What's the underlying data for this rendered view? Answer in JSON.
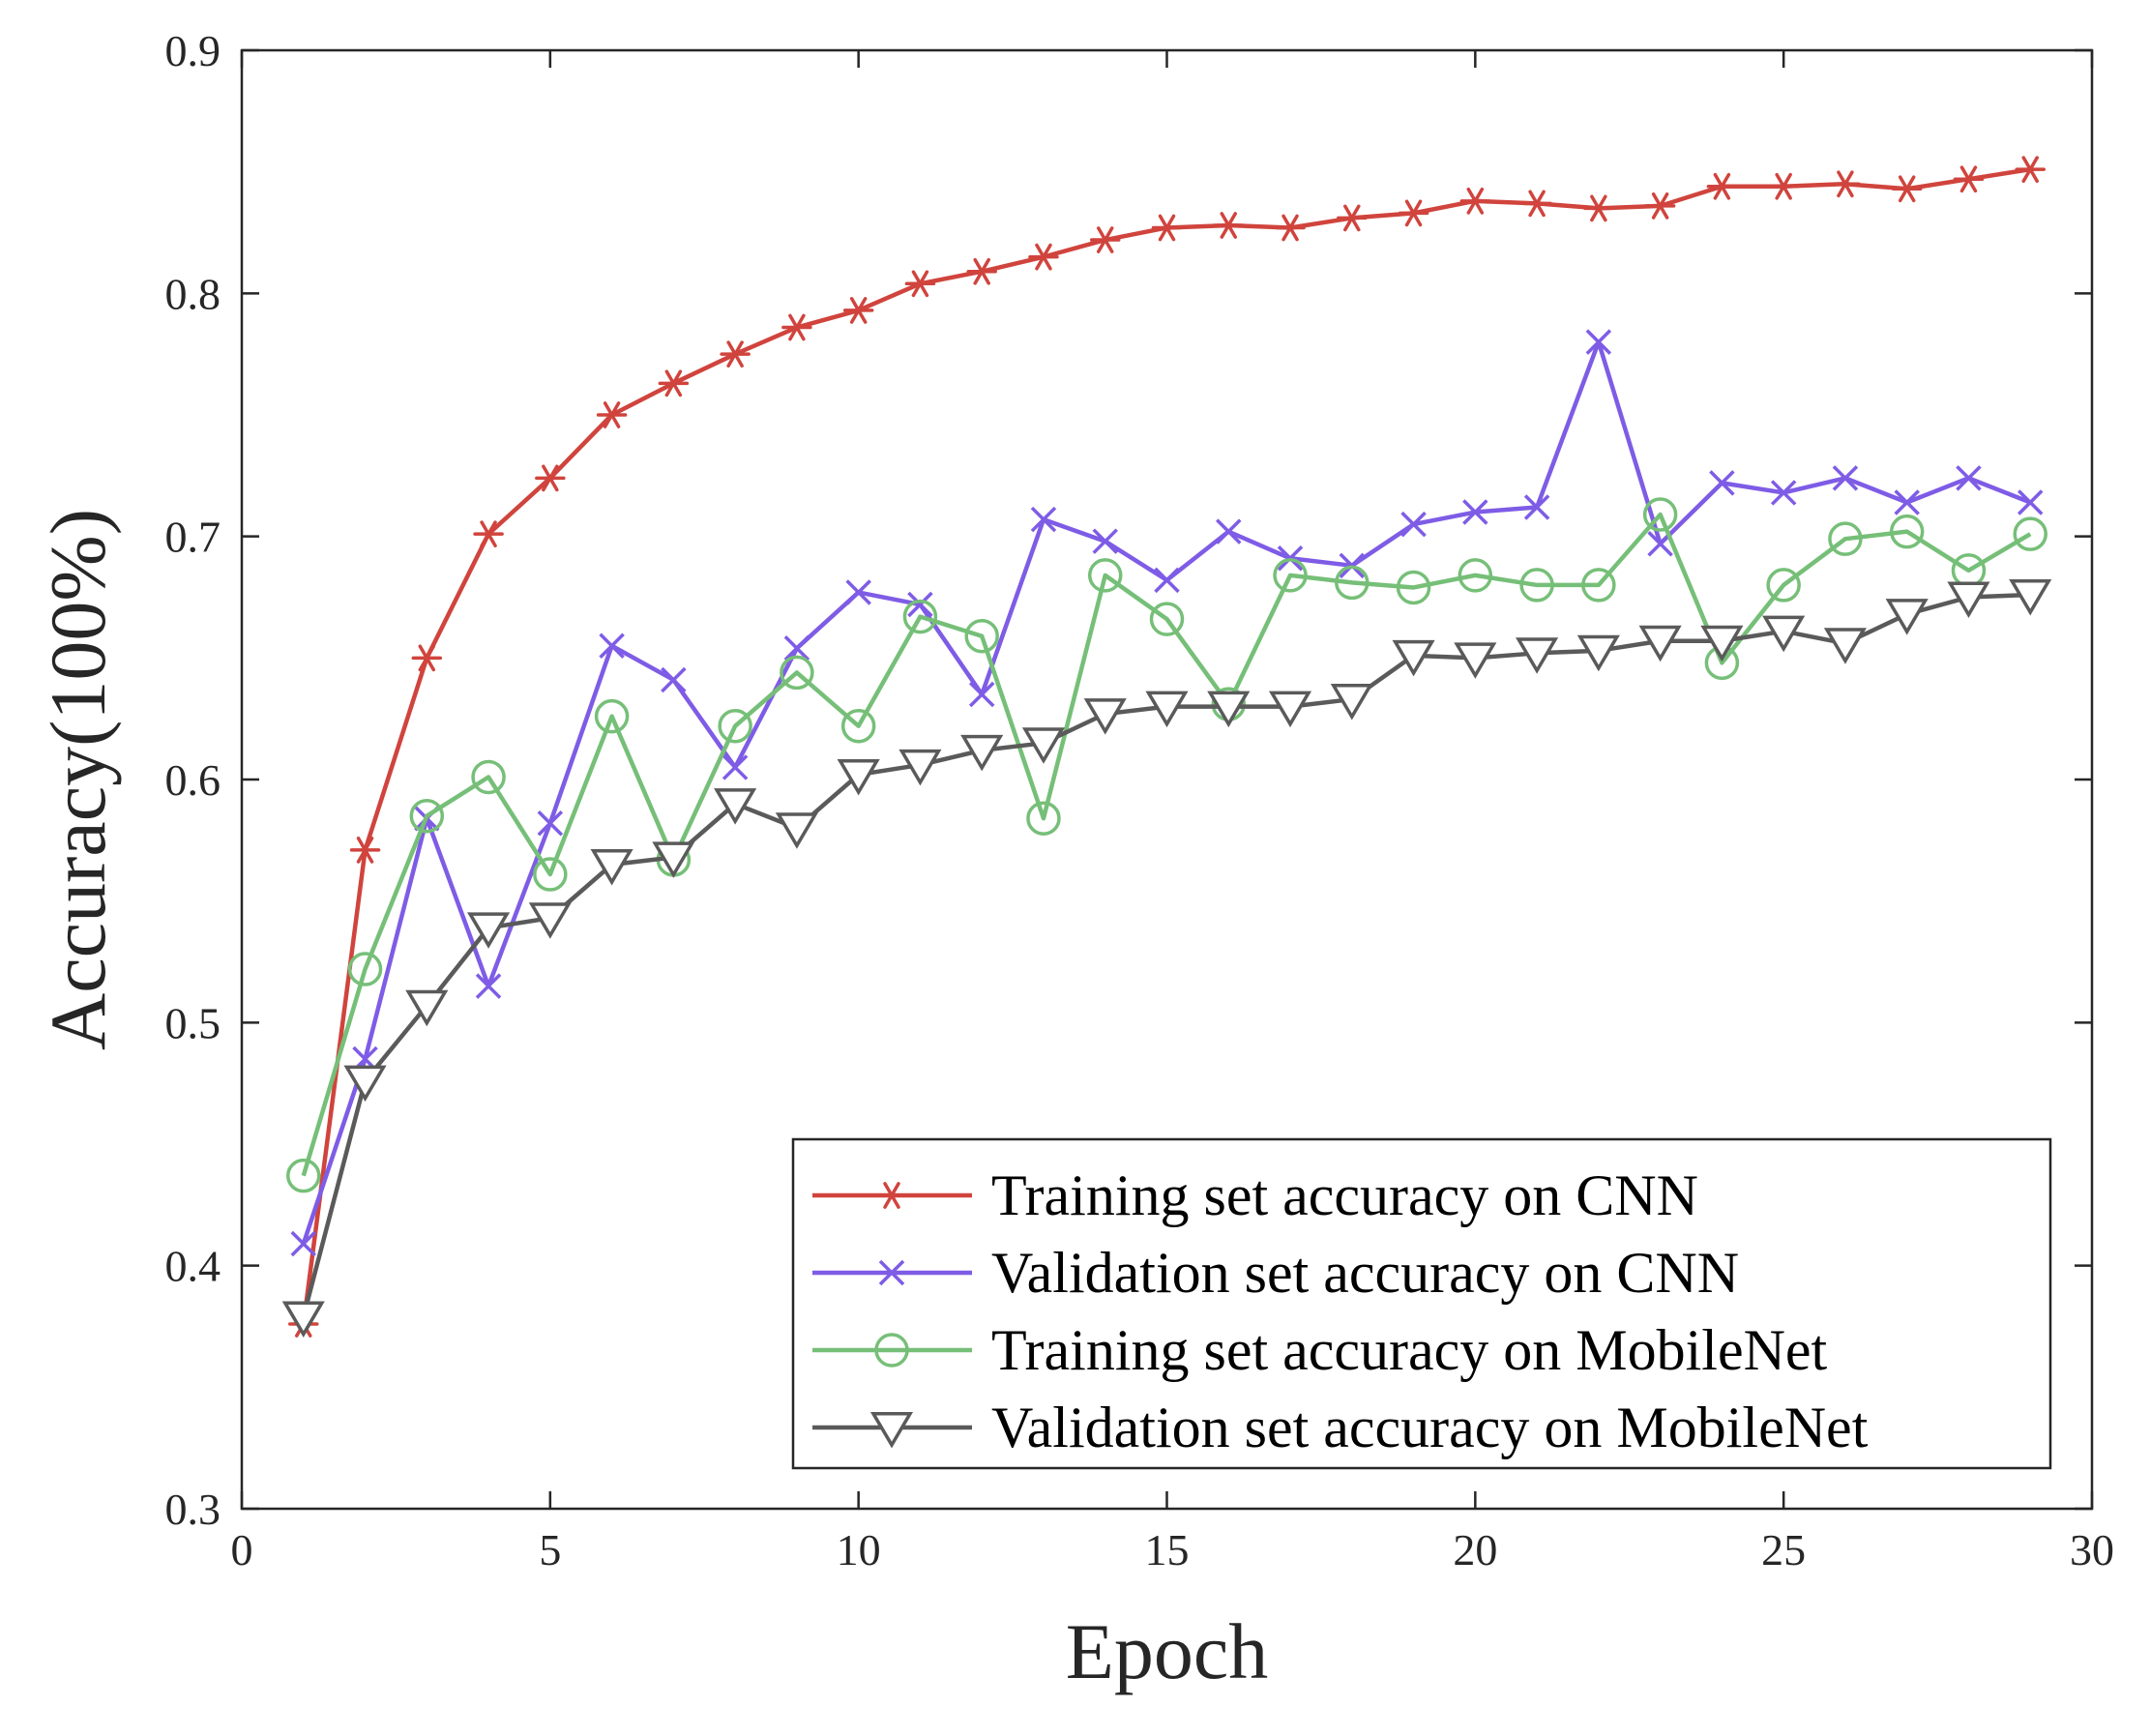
{
  "chart_data": {
    "type": "line",
    "title": "",
    "xlabel": "Epoch",
    "ylabel": "Accuracy(100%)",
    "xlim": [
      0,
      30
    ],
    "ylim": [
      0.3,
      0.9
    ],
    "xticks": [
      0,
      5,
      10,
      15,
      20,
      25,
      30
    ],
    "yticks": [
      0.3,
      0.4,
      0.5,
      0.6,
      0.7,
      0.8,
      0.9
    ],
    "xtick_labels": [
      "0",
      "5",
      "10",
      "15",
      "20",
      "25",
      "30"
    ],
    "ytick_labels": [
      "0.3",
      "0.4",
      "0.5",
      "0.6",
      "0.7",
      "0.8",
      "0.9"
    ],
    "grid": false,
    "legend_position": "bottom-right",
    "x": [
      1,
      2,
      3,
      4,
      5,
      6,
      7,
      8,
      9,
      10,
      11,
      12,
      13,
      14,
      15,
      16,
      17,
      18,
      19,
      20,
      21,
      22,
      23,
      24,
      25,
      26,
      27,
      28,
      29
    ],
    "series": [
      {
        "name": "Training set accuracy on CNN",
        "color": "#d0443d",
        "marker": "asterisk",
        "values": [
          0.376,
          0.571,
          0.65,
          0.701,
          0.724,
          0.75,
          0.763,
          0.775,
          0.786,
          0.793,
          0.804,
          0.809,
          0.815,
          0.822,
          0.827,
          0.828,
          0.827,
          0.831,
          0.833,
          0.838,
          0.837,
          0.835,
          0.836,
          0.844,
          0.844,
          0.845,
          0.843,
          0.847,
          0.851
        ]
      },
      {
        "name": "Validation set accuracy on CNN",
        "color": "#7e5ce6",
        "marker": "x",
        "values": [
          0.409,
          0.485,
          0.584,
          0.515,
          0.582,
          0.655,
          0.641,
          0.605,
          0.654,
          0.677,
          0.672,
          0.635,
          0.707,
          0.698,
          0.682,
          0.702,
          0.691,
          0.688,
          0.705,
          0.71,
          0.712,
          0.78,
          0.697,
          0.722,
          0.718,
          0.724,
          0.714,
          0.724,
          0.714
        ]
      },
      {
        "name": "Training set accuracy on MobileNet",
        "color": "#76bf78",
        "marker": "circle",
        "values": [
          0.437,
          0.522,
          0.585,
          0.601,
          0.561,
          0.626,
          0.567,
          0.622,
          0.644,
          0.622,
          0.667,
          0.659,
          0.584,
          0.684,
          0.666,
          0.631,
          0.684,
          0.681,
          0.679,
          0.684,
          0.68,
          0.68,
          0.709,
          0.648,
          0.68,
          0.699,
          0.702,
          0.686,
          0.701
        ]
      },
      {
        "name": "Validation set accuracy on MobileNet",
        "color": "#5a5a5a",
        "marker": "triangle-down",
        "values": [
          0.379,
          0.476,
          0.507,
          0.539,
          0.543,
          0.565,
          0.568,
          0.59,
          0.58,
          0.602,
          0.606,
          0.612,
          0.615,
          0.627,
          0.63,
          0.63,
          0.63,
          0.633,
          0.651,
          0.65,
          0.652,
          0.653,
          0.657,
          0.657,
          0.661,
          0.656,
          0.668,
          0.675,
          0.676
        ]
      }
    ]
  }
}
